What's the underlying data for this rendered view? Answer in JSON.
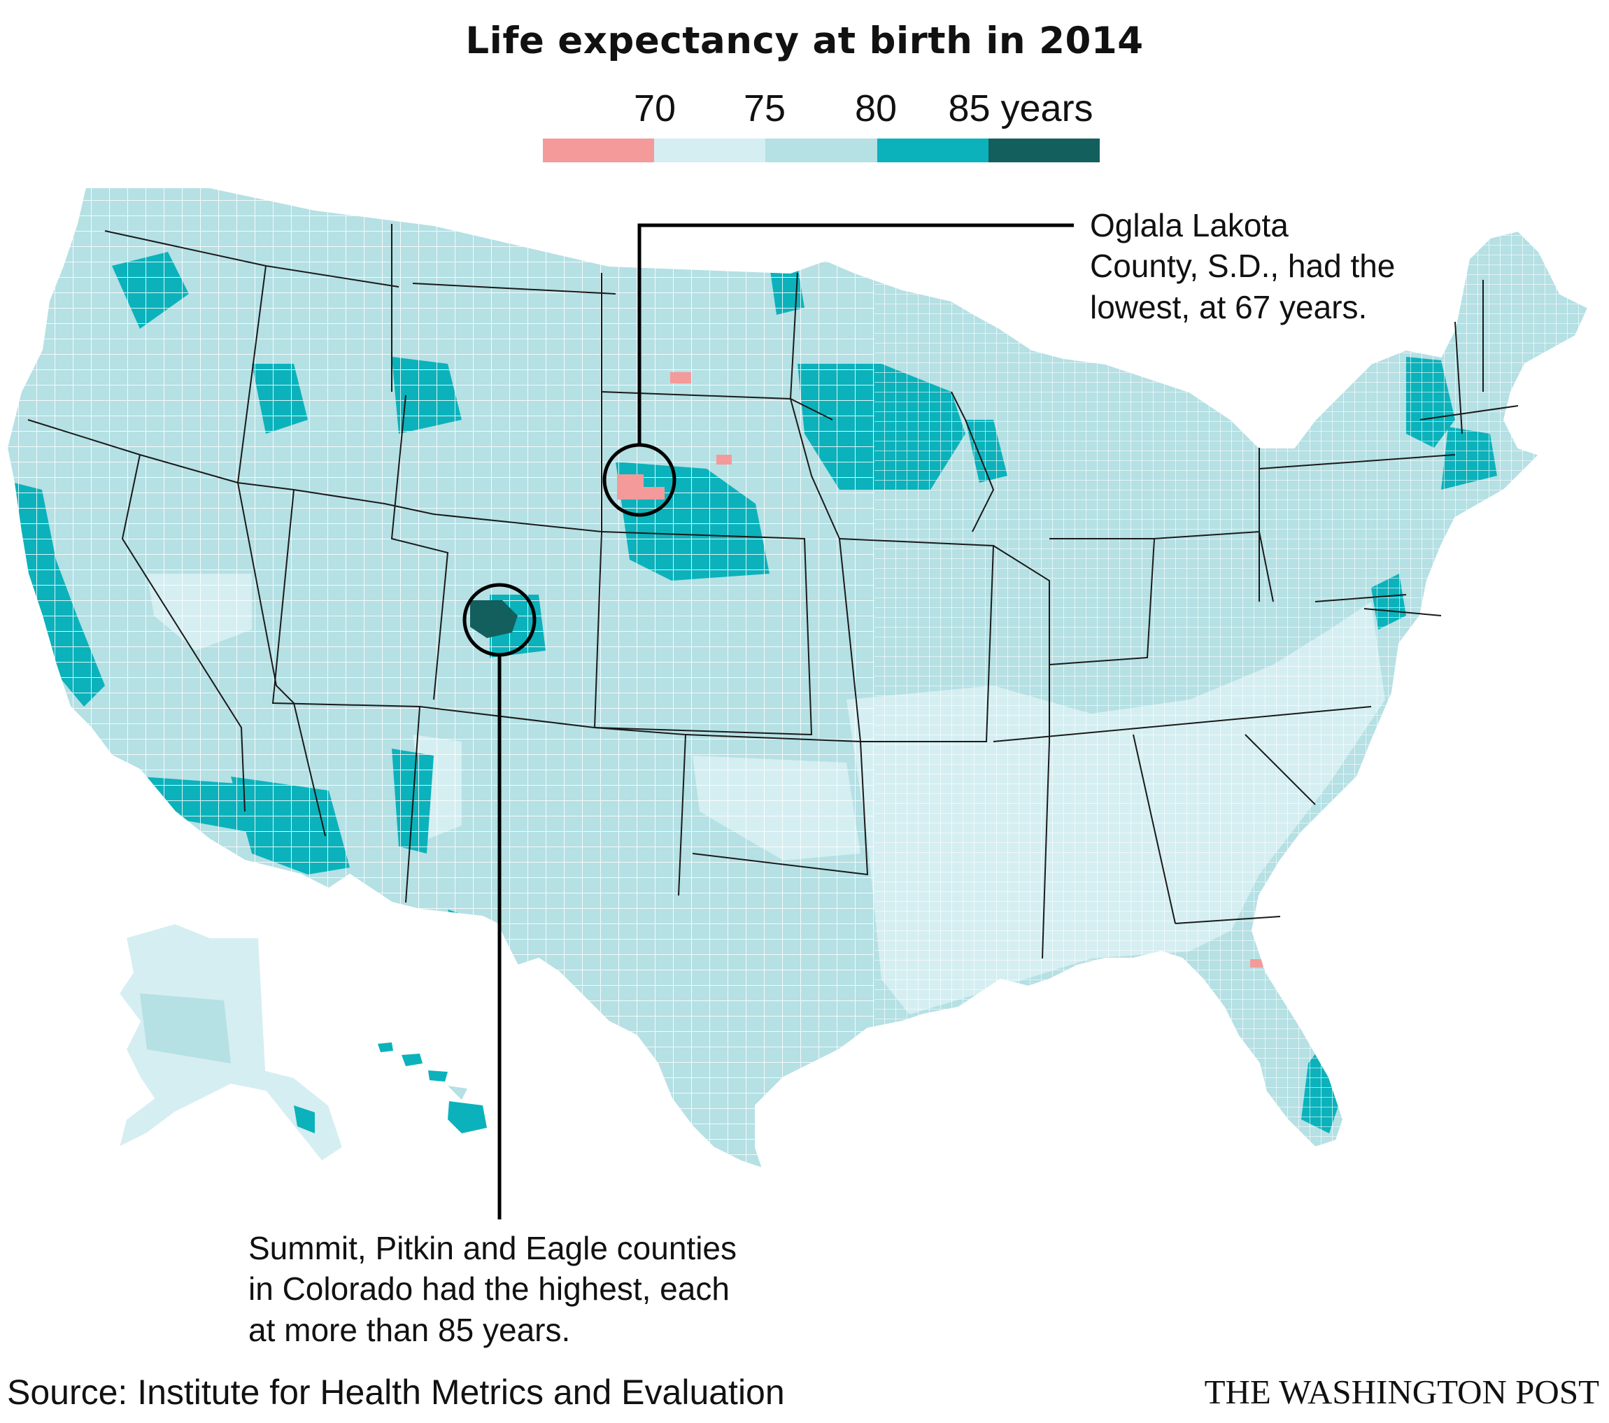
{
  "title": "Life expectancy at birth in 2014",
  "legend": {
    "tick_labels": [
      "70",
      "75",
      "80",
      "85 years"
    ],
    "bins": [
      {
        "range": "under 70",
        "color": "#f49a9a"
      },
      {
        "range": "70-75",
        "color": "#d5eef1"
      },
      {
        "range": "75-80",
        "color": "#b5e0e4"
      },
      {
        "range": "80-85",
        "color": "#0bb2bb"
      },
      {
        "range": "85 and over",
        "color": "#135f5d"
      }
    ]
  },
  "map": {
    "description_layer": "US county choropleth",
    "base_color": "#b5e0e4",
    "low_color": "#d5eef1",
    "high_color": "#0bb2bb",
    "highest_color": "#135f5d",
    "lowest_color": "#f49a9a",
    "border_color": "#ffffff",
    "state_border_color": "#1a1a1a"
  },
  "annotations": {
    "lowest": {
      "lines": [
        "Oglala Lakota",
        "County, S.D., had the",
        "lowest, at 67 years."
      ],
      "value_years": 67
    },
    "highest": {
      "lines": [
        "Summit, Pitkin and Eagle counties",
        "in Colorado had the highest, each",
        "at more than 85 years."
      ],
      "value_years": 85
    }
  },
  "footer": {
    "source": "Source: Institute for Health Metrics and Evaluation",
    "credit": "THE WASHINGTON POST"
  }
}
